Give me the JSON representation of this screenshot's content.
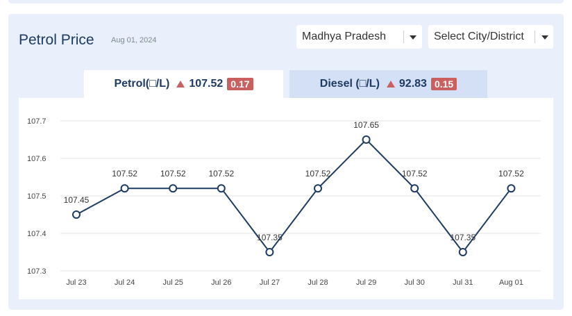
{
  "header": {
    "title": "Petrol Price",
    "date": "Aug 01, 2024",
    "state_select": "Madhya Pradesh",
    "city_select": "Select City/District"
  },
  "tabs": {
    "petrol": {
      "label": "Petrol(□/L)",
      "price": "107.52",
      "change": "0.17"
    },
    "diesel": {
      "label": "Diesel (□/L)",
      "price": "92.83",
      "change": "0.15"
    }
  },
  "colors": {
    "line": "#1d3a63",
    "up_badge": "#c9605f",
    "panel_bg": "#e9f0fb"
  },
  "chart_data": {
    "type": "line",
    "categories": [
      "Jul 23",
      "Jul 24",
      "Jul 25",
      "Jul 26",
      "Jul 27",
      "Jul 28",
      "Jul 29",
      "Jul 30",
      "Jul 31",
      "Aug 01"
    ],
    "values": [
      107.45,
      107.52,
      107.52,
      107.52,
      107.35,
      107.52,
      107.65,
      107.52,
      107.35,
      107.52
    ],
    "data_labels": [
      "107.45",
      "107.52",
      "107.52",
      "107.52",
      "107.35",
      "107.52",
      "107.65",
      "107.52",
      "107.35",
      "107.52"
    ],
    "yticks": [
      "107.3",
      "107.4",
      "107.5",
      "107.6",
      "107.7"
    ],
    "ylim": [
      107.3,
      107.7
    ],
    "grid": true
  }
}
